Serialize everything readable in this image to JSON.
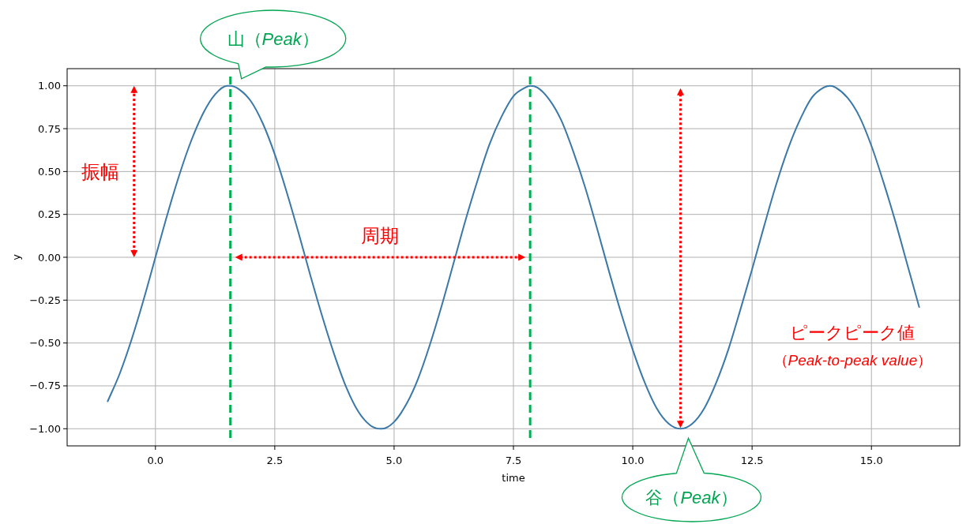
{
  "chart_data": {
    "type": "line",
    "xlabel": "time",
    "ylabel": "y",
    "x": [
      -1,
      -0.75,
      -0.5,
      -0.25,
      0,
      0.25,
      0.5,
      0.75,
      1,
      1.25,
      1.5,
      1.57,
      1.75,
      2,
      2.25,
      2.5,
      2.75,
      3,
      3.25,
      3.5,
      3.75,
      4,
      4.25,
      4.5,
      4.71,
      4.75,
      5,
      5.25,
      5.5,
      5.75,
      6,
      6.25,
      6.5,
      6.75,
      7,
      7.25,
      7.5,
      7.75,
      7.85,
      8,
      8.25,
      8.5,
      8.75,
      9,
      9.25,
      9.5,
      9.75,
      10,
      10.25,
      10.5,
      10.75,
      11,
      11.25,
      11.5,
      11.75,
      12,
      12.25,
      12.5,
      12.75,
      13,
      13.25,
      13.5,
      13.75,
      14,
      14.14,
      14.25,
      14.5,
      14.75,
      15,
      15.25,
      15.5,
      15.75,
      16
    ],
    "series": [
      {
        "color": "#3a78a8",
        "values": [
          -0.84,
          -0.68,
          -0.48,
          -0.25,
          0,
          0.25,
          0.48,
          0.68,
          0.84,
          0.95,
          1.0,
          1.0,
          0.98,
          0.91,
          0.78,
          0.6,
          0.38,
          0.14,
          -0.11,
          -0.35,
          -0.57,
          -0.76,
          -0.9,
          -0.98,
          -1.0,
          -1.0,
          -0.96,
          -0.86,
          -0.71,
          -0.51,
          -0.28,
          -0.03,
          0.22,
          0.45,
          0.66,
          0.82,
          0.94,
          0.99,
          1.0,
          0.99,
          0.92,
          0.8,
          0.62,
          0.41,
          0.17,
          -0.08,
          -0.32,
          -0.54,
          -0.73,
          -0.88,
          -0.97,
          -1.0,
          -0.97,
          -0.88,
          -0.73,
          -0.54,
          -0.31,
          -0.07,
          0.18,
          0.42,
          0.63,
          0.8,
          0.93,
          0.99,
          1.0,
          0.99,
          0.93,
          0.82,
          0.65,
          0.44,
          0.21,
          -0.04,
          -0.29
        ]
      }
    ],
    "xlim": [
      -1.85,
      16.85
    ],
    "ylim": [
      -1.1,
      1.1
    ],
    "xticks": [
      {
        "value": 0,
        "label": "0.0"
      },
      {
        "value": 2.5,
        "label": "2.5"
      },
      {
        "value": 5,
        "label": "5.0"
      },
      {
        "value": 7.5,
        "label": "7.5"
      },
      {
        "value": 10,
        "label": "10.0"
      },
      {
        "value": 12.5,
        "label": "12.5"
      },
      {
        "value": 15,
        "label": "15.0"
      }
    ],
    "yticks": [
      {
        "value": -1,
        "label": "−1.00"
      },
      {
        "value": -0.75,
        "label": "−0.75"
      },
      {
        "value": -0.5,
        "label": "−0.50"
      },
      {
        "value": -0.25,
        "label": "−0.25"
      },
      {
        "value": 0,
        "label": "0.00"
      },
      {
        "value": 0.25,
        "label": "0.25"
      },
      {
        "value": 0.5,
        "label": "0.50"
      },
      {
        "value": 0.75,
        "label": "0.75"
      },
      {
        "value": 1,
        "label": "1.00"
      }
    ],
    "grid": true,
    "ref_lines": [
      {
        "axis": "x",
        "value": 1.57,
        "color": "#00b050",
        "line_style": "dashed"
      },
      {
        "axis": "x",
        "value": 7.85,
        "color": "#00b050",
        "line_style": "dashed"
      }
    ],
    "annotations": [
      {
        "text": "山（Peak）",
        "x": 1.57,
        "y": 1.0
      },
      "谷（Peak）",
      "振幅",
      "周期",
      "ピークピーク値",
      "（Peak-to-peak value）"
    ]
  }
}
